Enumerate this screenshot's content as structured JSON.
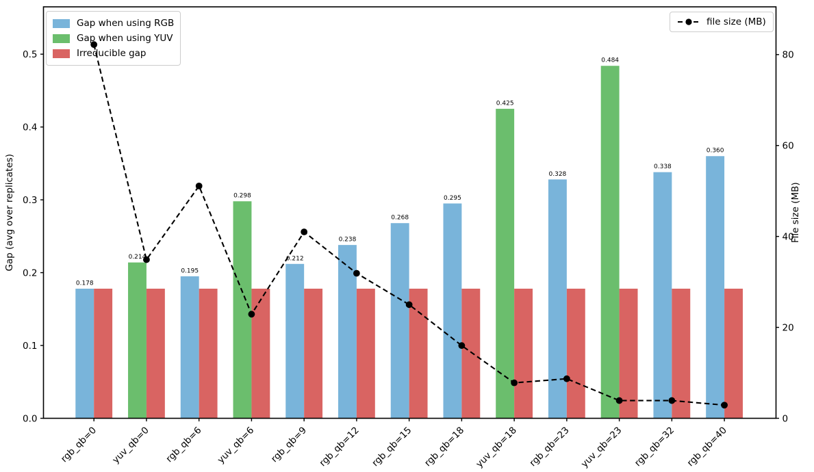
{
  "chart_data": {
    "type": "bar",
    "subtype": "grouped-bars-with-line-overlay",
    "categories": [
      "rgb_qb=0",
      "yuv_qb=0",
      "rgb_qb=6",
      "yuv_qb=6",
      "rgb_qb=9",
      "rgb_qb=12",
      "rgb_qb=15",
      "rgb_qb=18",
      "yuv_qb=18",
      "rgb_qb=23",
      "yuv_qb=23",
      "rgb_qb=32",
      "rgb_qb=40"
    ],
    "ylabel_left": "Gap (avg over replicates)",
    "ylabel_right": "File size (MB)",
    "ylim_left": [
      0,
      0.565
    ],
    "ylim_right": [
      0,
      90.5
    ],
    "yticks_left": [
      "0.0",
      "0.1",
      "0.2",
      "0.3",
      "0.4",
      "0.5"
    ],
    "yticks_left_values": [
      0.0,
      0.1,
      0.2,
      0.3,
      0.4,
      0.5
    ],
    "yticks_right": [
      "0",
      "20",
      "40",
      "60",
      "80"
    ],
    "yticks_right_values": [
      0,
      20,
      40,
      60,
      80
    ],
    "grid": false,
    "xtick_rotation": 45,
    "series": [
      {
        "name": "Gap when using RGB",
        "type": "bar",
        "axis": "left",
        "color": "#79B4DA",
        "values": [
          0.178,
          null,
          0.195,
          null,
          0.212,
          0.238,
          0.268,
          0.295,
          null,
          0.328,
          null,
          0.338,
          0.36
        ]
      },
      {
        "name": "Gap when using YUV",
        "type": "bar",
        "axis": "left",
        "color": "#6BBE6D",
        "values": [
          null,
          0.214,
          null,
          0.298,
          null,
          null,
          null,
          null,
          0.425,
          null,
          0.484,
          null,
          null
        ]
      },
      {
        "name": "Irreducible gap",
        "type": "bar",
        "axis": "left",
        "color": "#D96462",
        "values": [
          0.178,
          0.178,
          0.178,
          0.178,
          0.178,
          0.178,
          0.178,
          0.178,
          0.178,
          0.178,
          0.178,
          0.178,
          0.178
        ]
      },
      {
        "name": "file size (MB)",
        "type": "line",
        "axis": "right",
        "color": "#000000",
        "linestyle": "dashed",
        "marker": "circle",
        "values": [
          82.2,
          34.9,
          51.1,
          22.9,
          41.0,
          31.9,
          25.0,
          16.0,
          7.8,
          8.7,
          3.9,
          3.9,
          2.9
        ]
      }
    ],
    "bar_labels": [
      "0.178",
      "0.214",
      "0.195",
      "0.298",
      "0.212",
      "0.238",
      "0.268",
      "0.295",
      "0.425",
      "0.328",
      "0.484",
      "0.338",
      "0.360"
    ],
    "legend_left": {
      "position": "upper left",
      "items": [
        {
          "label": "Gap when using RGB",
          "color": "#79B4DA"
        },
        {
          "label": "Gap when using YUV",
          "color": "#6BBE6D"
        },
        {
          "label": "Irreducible gap",
          "color": "#D96462"
        }
      ]
    },
    "legend_right": {
      "position": "upper right",
      "items": [
        {
          "label": "file size (MB)",
          "color": "#000000"
        }
      ]
    }
  }
}
